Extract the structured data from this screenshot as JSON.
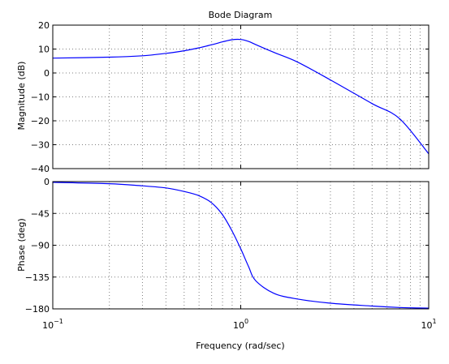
{
  "chart_data": {
    "type": "line",
    "title": "Bode Diagram",
    "xlabel": "Frequency  (rad/sec)",
    "xscale": "log",
    "xlim": [
      0.1,
      10
    ],
    "x_ticks": [
      {
        "value": 0.1,
        "base": "10",
        "exponent": "−1"
      },
      {
        "value": 1,
        "base": "10",
        "exponent": "0"
      },
      {
        "value": 10,
        "base": "10",
        "exponent": "1"
      }
    ],
    "grid": true,
    "line_color": "#0000ff",
    "panels": [
      {
        "name": "magnitude",
        "ylabel": "Magnitude (dB)",
        "ylim": [
          -40,
          20
        ],
        "y_ticks": [
          "20",
          "10",
          "0",
          "−10",
          "−20",
          "−30",
          "−40"
        ],
        "y_tick_values": [
          20,
          10,
          0,
          -10,
          -20,
          -30,
          -40
        ],
        "x": [
          0.1,
          0.2,
          0.3,
          0.4,
          0.5,
          0.6,
          0.7,
          0.8,
          0.9,
          1.0,
          1.1,
          1.2,
          1.5,
          2,
          3,
          5,
          7,
          10
        ],
        "y": [
          6.2,
          6.6,
          7.2,
          8.2,
          9.3,
          10.5,
          11.8,
          13.0,
          13.9,
          14.0,
          13.2,
          11.9,
          8.6,
          4.6,
          -2.9,
          -12.8,
          -19.1,
          -33.8
        ]
      },
      {
        "name": "phase",
        "ylabel": "Phase (deg)",
        "ylim": [
          -180,
          0
        ],
        "y_ticks": [
          "0",
          "−45",
          "−90",
          "−135",
          "−180"
        ],
        "y_tick_values": [
          0,
          -45,
          -90,
          -135,
          -180
        ],
        "x": [
          0.1,
          0.2,
          0.3,
          0.4,
          0.5,
          0.6,
          0.7,
          0.8,
          0.9,
          1.0,
          1.1,
          1.2,
          1.5,
          2,
          3,
          5,
          7,
          10
        ],
        "y": [
          -1,
          -3,
          -6,
          -9,
          -14,
          -20,
          -30,
          -47,
          -70,
          -95,
          -120,
          -140,
          -158,
          -166,
          -172,
          -176,
          -178,
          -179
        ]
      }
    ]
  }
}
